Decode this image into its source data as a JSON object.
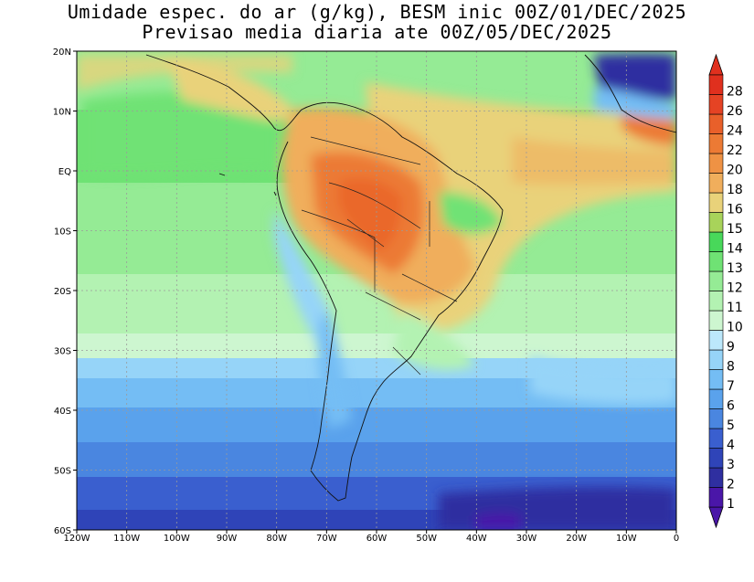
{
  "title_line1": "Umidade espec. do ar (g/kg), BESM inic 00Z/01/DEC/2025",
  "title_line2": "Previsao media diaria ate 00Z/05/DEC/2025",
  "map": {
    "lon_range": [
      -120,
      0
    ],
    "lat_range": [
      -60,
      20
    ],
    "lon_ticks": [
      {
        "value": -120,
        "label": "120W"
      },
      {
        "value": -110,
        "label": "110W"
      },
      {
        "value": -100,
        "label": "100W"
      },
      {
        "value": -90,
        "label": "90W"
      },
      {
        "value": -80,
        "label": "80W"
      },
      {
        "value": -70,
        "label": "70W"
      },
      {
        "value": -60,
        "label": "60W"
      },
      {
        "value": -50,
        "label": "50W"
      },
      {
        "value": -40,
        "label": "40W"
      },
      {
        "value": -30,
        "label": "30W"
      },
      {
        "value": -20,
        "label": "20W"
      },
      {
        "value": -10,
        "label": "10W"
      },
      {
        "value": 0,
        "label": "0"
      }
    ],
    "lat_ticks": [
      {
        "value": 20,
        "label": "20N"
      },
      {
        "value": 10,
        "label": "10N"
      },
      {
        "value": 0,
        "label": "EQ"
      },
      {
        "value": -10,
        "label": "10S"
      },
      {
        "value": -20,
        "label": "20S"
      },
      {
        "value": -30,
        "label": "30S"
      },
      {
        "value": -40,
        "label": "40S"
      },
      {
        "value": -50,
        "label": "50S"
      },
      {
        "value": -60,
        "label": "60S"
      }
    ],
    "gridlines": true
  },
  "colorbar": {
    "levels": [
      {
        "label": "1",
        "color": "#4a16a8"
      },
      {
        "label": "2",
        "color": "#2f2fa0"
      },
      {
        "label": "3",
        "color": "#2f44b8"
      },
      {
        "label": "4",
        "color": "#3a5fcf"
      },
      {
        "label": "5",
        "color": "#4a86e0"
      },
      {
        "label": "6",
        "color": "#5aa2ec"
      },
      {
        "label": "7",
        "color": "#74bdf4"
      },
      {
        "label": "8",
        "color": "#96d4f8"
      },
      {
        "label": "9",
        "color": "#bce8fb"
      },
      {
        "label": "10",
        "color": "#cdf6d0"
      },
      {
        "label": "11",
        "color": "#b3f2b2"
      },
      {
        "label": "12",
        "color": "#95eb95"
      },
      {
        "label": "13",
        "color": "#6fe274"
      },
      {
        "label": "14",
        "color": "#48d85a"
      },
      {
        "label": "15",
        "color": "#a8d35a"
      },
      {
        "label": "16",
        "color": "#e9d27a"
      },
      {
        "label": "18",
        "color": "#f0ae5c"
      },
      {
        "label": "20",
        "color": "#ef9244"
      },
      {
        "label": "22",
        "color": "#ec7a34"
      },
      {
        "label": "24",
        "color": "#e9602a"
      },
      {
        "label": "26",
        "color": "#e54324"
      },
      {
        "label": "28",
        "color": "#e0301e"
      }
    ],
    "under_color": "#4a16a8",
    "over_color": "#e0301e"
  }
}
